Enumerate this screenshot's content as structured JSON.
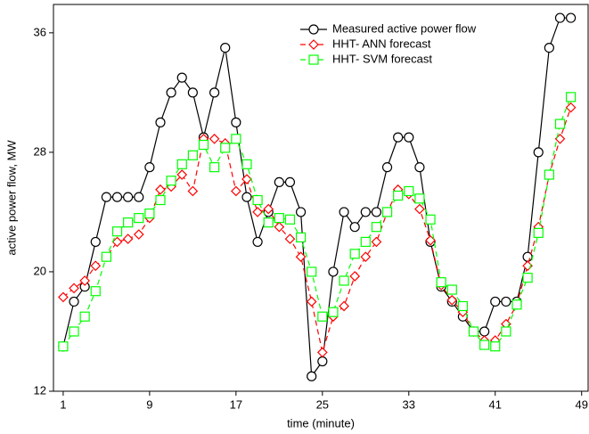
{
  "chart_data": {
    "type": "line",
    "x_label": "time (minute)",
    "y_label": "active power flow,  MW",
    "x": [
      1,
      2,
      3,
      4,
      5,
      6,
      7,
      8,
      9,
      10,
      11,
      12,
      13,
      14,
      15,
      16,
      17,
      18,
      19,
      20,
      21,
      22,
      23,
      24,
      25,
      26,
      27,
      28,
      29,
      30,
      31,
      32,
      33,
      34,
      35,
      36,
      37,
      38,
      39,
      40,
      41,
      42,
      43,
      44,
      45,
      46,
      47,
      48
    ],
    "series": [
      {
        "name": "Measured active power flow",
        "color": "#000000",
        "line_style": "solid",
        "marker": "circle",
        "values": [
          15,
          18,
          19,
          22,
          25,
          25,
          25,
          25,
          27,
          30,
          32,
          33,
          32,
          29,
          32,
          35,
          30,
          25,
          22,
          24,
          26,
          26,
          24,
          13,
          14,
          20,
          24,
          23,
          24,
          24,
          27,
          29,
          29,
          27,
          22,
          19,
          18,
          17,
          16,
          16,
          18,
          18,
          18,
          21,
          28,
          35,
          37,
          37
        ]
      },
      {
        "name": "HHT- ANN forecast",
        "color": "#ff0000",
        "line_style": "dashed",
        "marker": "diamond",
        "values": [
          18.3,
          18.9,
          19.4,
          20.4,
          21,
          22,
          22.2,
          22.5,
          23.6,
          25.5,
          25.7,
          26.5,
          25.4,
          28.9,
          28.9,
          28.6,
          25.4,
          26.2,
          24,
          24.2,
          23,
          22.2,
          21,
          18,
          14.6,
          17,
          17.7,
          19.7,
          21,
          22,
          24,
          25.5,
          25.2,
          24.2,
          22.1,
          19.1,
          18.1,
          17.3,
          16,
          15.4,
          15.4,
          16.5,
          17.8,
          20.4,
          23,
          26.5,
          28.9,
          31
        ]
      },
      {
        "name": "HHT- SVM forecast",
        "color": "#00ff00",
        "line_style": "dashed",
        "marker": "square",
        "values": [
          15,
          16,
          17,
          18.7,
          21,
          22.7,
          23.3,
          23.6,
          23.9,
          24.8,
          26.1,
          27.2,
          27.8,
          28.5,
          27,
          28.3,
          28.9,
          27.2,
          24.8,
          23.3,
          23.6,
          23.5,
          22.3,
          20,
          17,
          17.3,
          19.4,
          21.2,
          22,
          23,
          24,
          25.1,
          25.4,
          24.9,
          23.5,
          19.3,
          18.8,
          17.7,
          16,
          15.1,
          15,
          16,
          17.8,
          19.6,
          22.6,
          26.5,
          29.9,
          31.7
        ]
      }
    ],
    "xlim": [
      0.1,
      49.6
    ],
    "ylim": [
      12,
      37.9
    ],
    "xticks": [
      1,
      9,
      17,
      25,
      33,
      41,
      49
    ],
    "yticks": [
      12,
      20,
      28,
      36
    ],
    "grid": false,
    "legend_position": "upper right"
  }
}
